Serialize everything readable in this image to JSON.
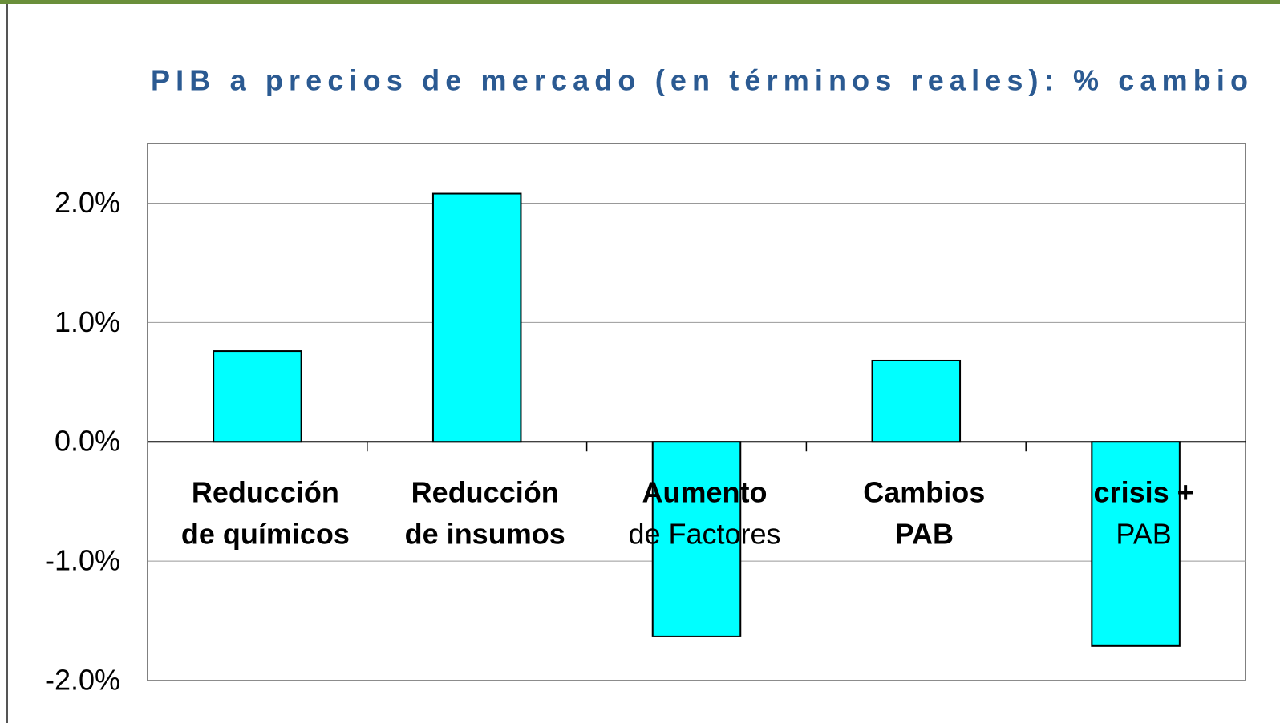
{
  "chart_data": {
    "type": "bar",
    "title": "PIB a precios de mercado (en términos reales): % cambio",
    "categories": [
      [
        "Reducción",
        "de químicos"
      ],
      [
        "Reducción",
        "de insumos"
      ],
      [
        "Aumento",
        "de Factores"
      ],
      [
        "Cambios",
        "PAB"
      ],
      [
        "crisis +",
        "PAB"
      ]
    ],
    "values": [
      0.76,
      2.08,
      -1.63,
      0.68,
      -1.71
    ],
    "color": "#00ffff",
    "ylim": [
      -2,
      2.5
    ],
    "yticks": [
      {
        "value": -2,
        "label": "-2.0%"
      },
      {
        "value": -1,
        "label": "-1.0%"
      },
      {
        "value": 0,
        "label": "0.0%"
      },
      {
        "value": 1,
        "label": "1.0%"
      },
      {
        "value": 2,
        "label": "2.0%"
      }
    ],
    "grid": true
  }
}
